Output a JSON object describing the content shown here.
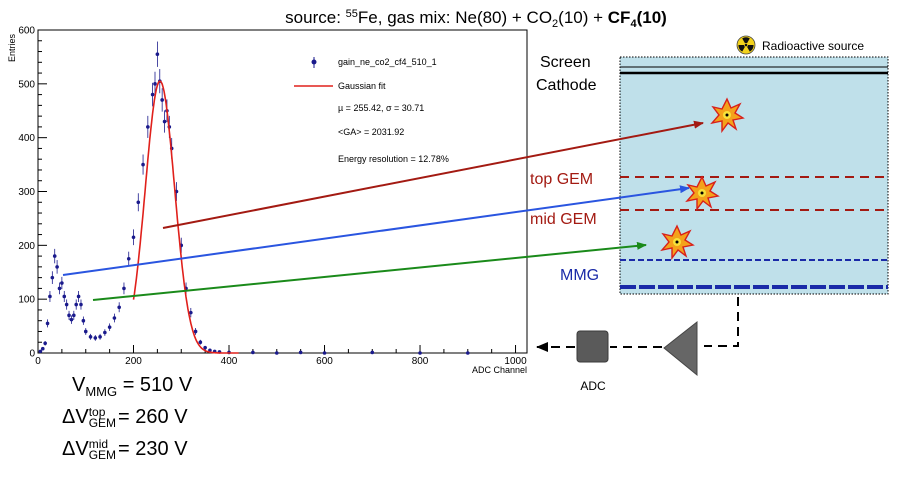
{
  "header": {
    "prefix": "source: ",
    "isotope_sup": "55",
    "isotope": "Fe, gas mix: Ne(80) + CO",
    "co2_sub": "2",
    "mid": "(10) + ",
    "cf4_a": "CF",
    "cf4_sub": "4",
    "cf4_b": "(10)"
  },
  "chart_data": {
    "type": "scatter",
    "xlabel": "ADC Channel",
    "ylabel": "Entries",
    "xlim": [
      0,
      1024
    ],
    "ylim": [
      0,
      600
    ],
    "x_ticks": [
      0,
      200,
      400,
      600,
      800,
      1000
    ],
    "y_ticks": [
      0,
      100,
      200,
      300,
      400,
      500,
      600
    ],
    "series": [
      {
        "name": "gain_ne_co2_cf4_510_1",
        "x": [
          5,
          10,
          15,
          20,
          25,
          30,
          35,
          40,
          45,
          50,
          55,
          60,
          65,
          70,
          75,
          80,
          85,
          90,
          95,
          100,
          110,
          120,
          130,
          140,
          150,
          160,
          170,
          180,
          190,
          200,
          210,
          220,
          230,
          240,
          245,
          250,
          255,
          260,
          265,
          270,
          275,
          280,
          290,
          300,
          310,
          320,
          330,
          340,
          350,
          360,
          370,
          380,
          400,
          450,
          500,
          550,
          600,
          700,
          800,
          900
        ],
        "y": [
          3,
          8,
          18,
          55,
          105,
          140,
          180,
          160,
          120,
          130,
          105,
          90,
          70,
          62,
          70,
          90,
          105,
          90,
          60,
          40,
          30,
          28,
          30,
          38,
          48,
          65,
          85,
          120,
          175,
          215,
          280,
          350,
          420,
          480,
          500,
          555,
          505,
          470,
          430,
          450,
          420,
          380,
          300,
          200,
          120,
          75,
          40,
          20,
          10,
          5,
          3,
          2,
          1,
          1,
          0,
          1,
          0,
          1,
          0,
          0
        ]
      }
    ],
    "fit": {
      "name": "Gaussian fit",
      "mu": 255.42,
      "sigma": 30.71,
      "amplitude": 505,
      "range": [
        200,
        420
      ]
    },
    "legend": {
      "placement": "top-right",
      "series_label": "gain_ne_co2_cf4_510_1",
      "fit_label": "Gaussian fit",
      "stats_line": "µ  = 255.42,  σ = 30.71",
      "ga_line": "<GA> = 2031.92",
      "resolution_line": "Energy resolution = 12.78%"
    }
  },
  "detector": {
    "source_label": "Radioactive source",
    "screen_label": "Screen",
    "cathode_label": "Cathode",
    "top_gem_label": "top GEM",
    "mid_gem_label": "mid GEM",
    "mmg_label": "MMG",
    "adc_label": "ADC"
  },
  "voltages": {
    "v_letter": "V",
    "delta_v": "ΔV",
    "mmg_sub": "MMG",
    "mmg_value": "= 510 V",
    "gem_sub": "GEM",
    "top_sup": "top",
    "top_value": "= 260 V",
    "mid_sup": "mid",
    "mid_value": "= 230 V"
  },
  "colors": {
    "data_points": "#1a1a8c",
    "fit_line": "#e0201b",
    "arrow_red": "#a31a12",
    "arrow_blue": "#2a55e0",
    "arrow_green": "#1a8a1a",
    "detector_fill": "#bfe0ea",
    "gem_line": "#a31a12",
    "mmg_line": "#1a2aa8"
  }
}
